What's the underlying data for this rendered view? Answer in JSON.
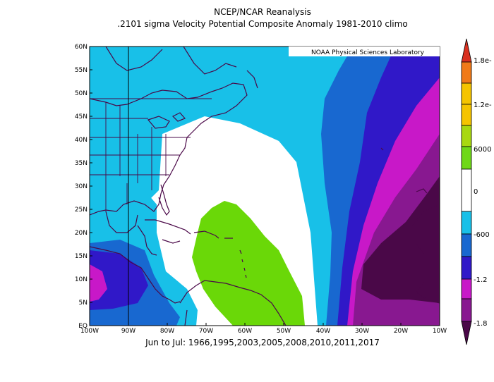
{
  "header": {
    "title": "NCEP/NCAR Reanalysis",
    "subtitle": ".2101 sigma Velocity Potential  Composite Anomaly 1981-2010 climo"
  },
  "credit": "NOAA Physical Sciences Laboratory",
  "footer": "Jun to Jul: 1966,1995,2003,2005,2008,2010,2011,2017",
  "map": {
    "lat_labels": [
      "EQ",
      "5N",
      "10N",
      "15N",
      "20N",
      "25N",
      "30N",
      "35N",
      "40N",
      "45N",
      "50N",
      "55N",
      "60N"
    ],
    "lon_labels": [
      "100W",
      "90W",
      "80W",
      "70W",
      "60W",
      "50W",
      "40W",
      "30W",
      "20W",
      "10W"
    ]
  },
  "colorbar": {
    "labels": [
      "1.8e-",
      "1.2e-",
      "6000",
      "0",
      "-600",
      "-1.2",
      "-1.8"
    ],
    "colors": [
      "#d93020",
      "#f07a18",
      "#f5c400",
      "#6fd818",
      "#ffffff",
      "#18c0e8",
      "#1868d0",
      "#3018c8",
      "#c818c8",
      "#881890",
      "#4a0848"
    ]
  },
  "shading_colors": {
    "light_blue": "#18c0e8",
    "blue": "#1868d0",
    "dark_blue": "#3018c8",
    "magenta": "#c818c8",
    "purple": "#881890",
    "dark_purple": "#4a0848",
    "green": "#6ad808",
    "coast": "#4a0848"
  }
}
